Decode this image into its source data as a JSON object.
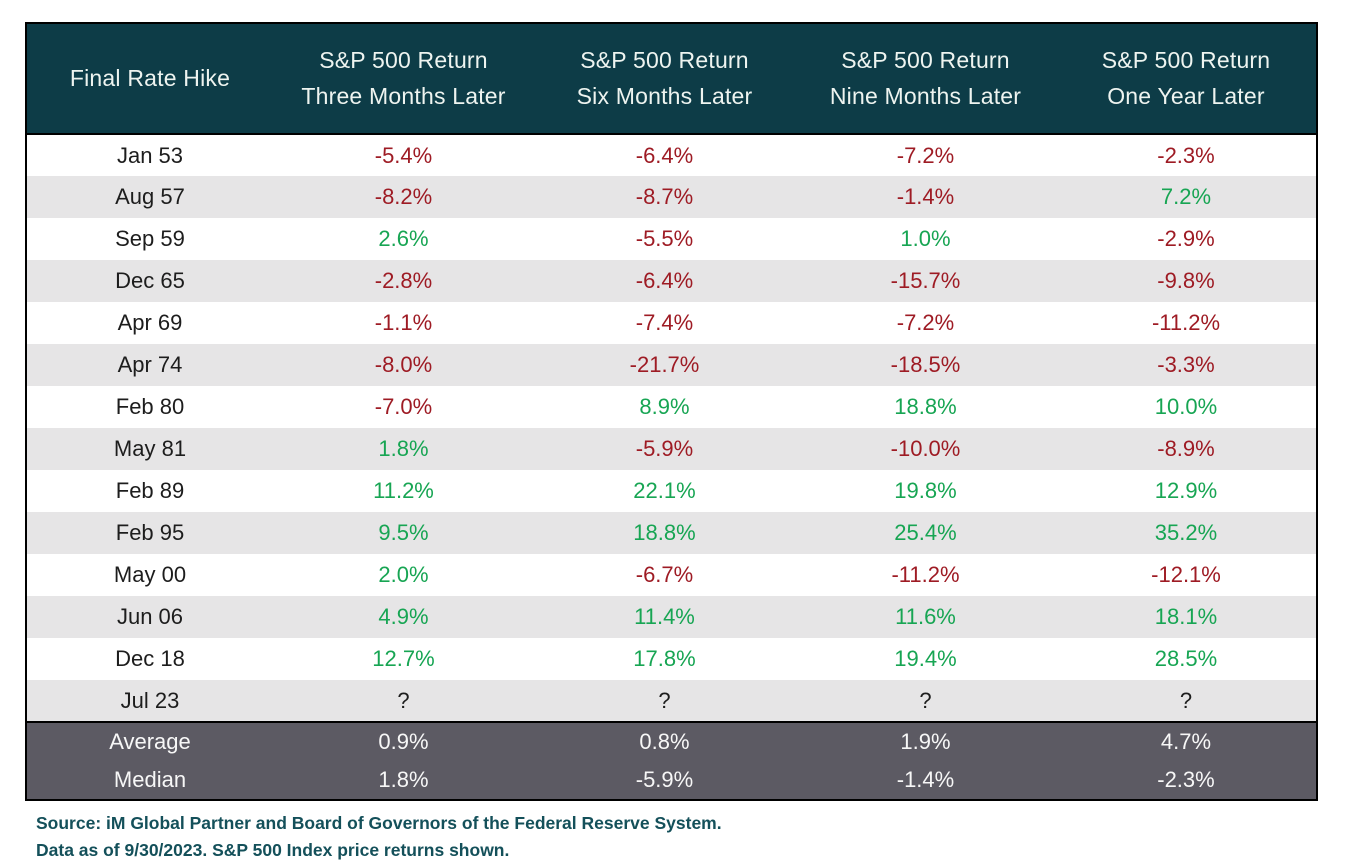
{
  "table": {
    "first_column_header": "Final Rate Hike",
    "return_columns": [
      {
        "line1": "S&P 500 Return",
        "line2": "Three Months Later"
      },
      {
        "line1": "S&P 500 Return",
        "line2": "Six Months Later"
      },
      {
        "line1": "S&P 500 Return",
        "line2": "Nine Months Later"
      },
      {
        "line1": "S&P 500 Return",
        "line2": "One Year Later"
      }
    ],
    "rows": [
      {
        "date": "Jan 53",
        "values": [
          "-5.4%",
          "-6.4%",
          "-7.2%",
          "-2.3%"
        ]
      },
      {
        "date": "Aug 57",
        "values": [
          "-8.2%",
          "-8.7%",
          "-1.4%",
          "7.2%"
        ]
      },
      {
        "date": "Sep 59",
        "values": [
          "2.6%",
          "-5.5%",
          "1.0%",
          "-2.9%"
        ]
      },
      {
        "date": "Dec 65",
        "values": [
          "-2.8%",
          "-6.4%",
          "-15.7%",
          "-9.8%"
        ]
      },
      {
        "date": "Apr 69",
        "values": [
          "-1.1%",
          "-7.4%",
          "-7.2%",
          "-11.2%"
        ]
      },
      {
        "date": "Apr 74",
        "values": [
          "-8.0%",
          "-21.7%",
          "-18.5%",
          "-3.3%"
        ]
      },
      {
        "date": "Feb 80",
        "values": [
          "-7.0%",
          "8.9%",
          "18.8%",
          "10.0%"
        ]
      },
      {
        "date": "May 81",
        "values": [
          "1.8%",
          "-5.9%",
          "-10.0%",
          "-8.9%"
        ]
      },
      {
        "date": "Feb 89",
        "values": [
          "11.2%",
          "22.1%",
          "19.8%",
          "12.9%"
        ]
      },
      {
        "date": "Feb 95",
        "values": [
          "9.5%",
          "18.8%",
          "25.4%",
          "35.2%"
        ]
      },
      {
        "date": "May 00",
        "values": [
          "2.0%",
          "-6.7%",
          "-11.2%",
          "-12.1%"
        ]
      },
      {
        "date": "Jun 06",
        "values": [
          "4.9%",
          "11.4%",
          "11.6%",
          "18.1%"
        ]
      },
      {
        "date": "Dec 18",
        "values": [
          "12.7%",
          "17.8%",
          "19.4%",
          "28.5%"
        ]
      },
      {
        "date": "Jul 23",
        "values": [
          "?",
          "?",
          "?",
          "?"
        ]
      }
    ],
    "summary_rows": [
      {
        "label": "Average",
        "values": [
          "0.9%",
          "0.8%",
          "1.9%",
          "4.7%"
        ]
      },
      {
        "label": "Median",
        "values": [
          "1.8%",
          "-5.9%",
          "-1.4%",
          "-2.3%"
        ]
      }
    ]
  },
  "footnotes": {
    "line1": "Source: iM Global Partner and Board of Governors of the Federal Reserve System.",
    "line2": "Data as of 9/30/2023. S&P 500 Index price returns shown."
  },
  "colors": {
    "positive": "#17a553",
    "negative": "#9e1b24",
    "header_bg": "#0d3c47",
    "summary_bg": "#5c5a63",
    "row_alt_bg": "#e6e5e6",
    "source_text": "#14505a"
  }
}
